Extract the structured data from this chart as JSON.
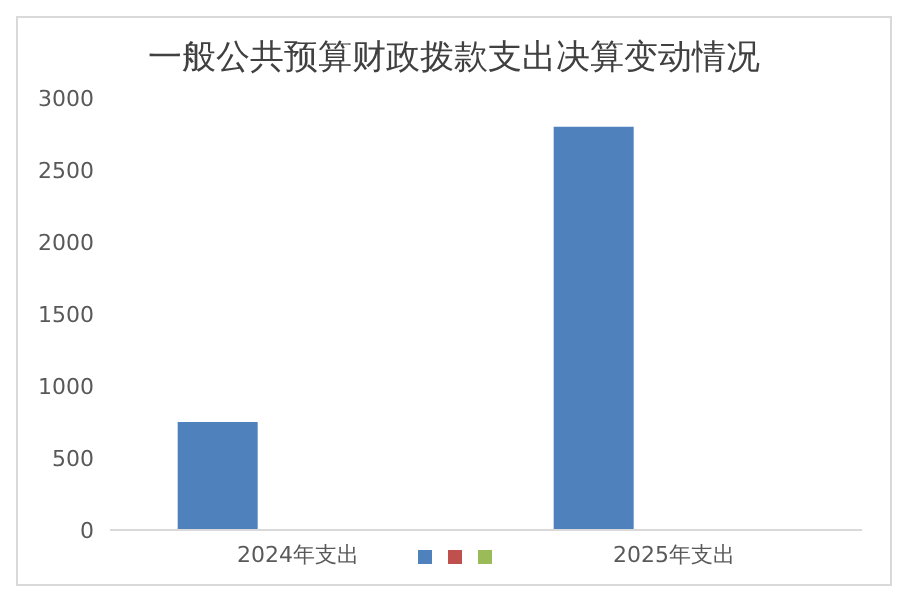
{
  "chart_data": {
    "type": "bar",
    "title": "一般公共预算财政拨款支出决算变动情况",
    "categories": [
      "2024年支出",
      "2025年支出"
    ],
    "series": [
      {
        "color": "#4f81bd",
        "values": [
          750,
          2800
        ]
      },
      {
        "color": "#c0504d",
        "values": [
          0,
          0
        ]
      },
      {
        "color": "#9bbb59",
        "values": [
          0,
          0
        ]
      }
    ],
    "ylim": [
      0,
      3000
    ],
    "yticks": [
      0,
      500,
      1000,
      1500,
      2000,
      2500,
      3000
    ],
    "grid": false
  }
}
